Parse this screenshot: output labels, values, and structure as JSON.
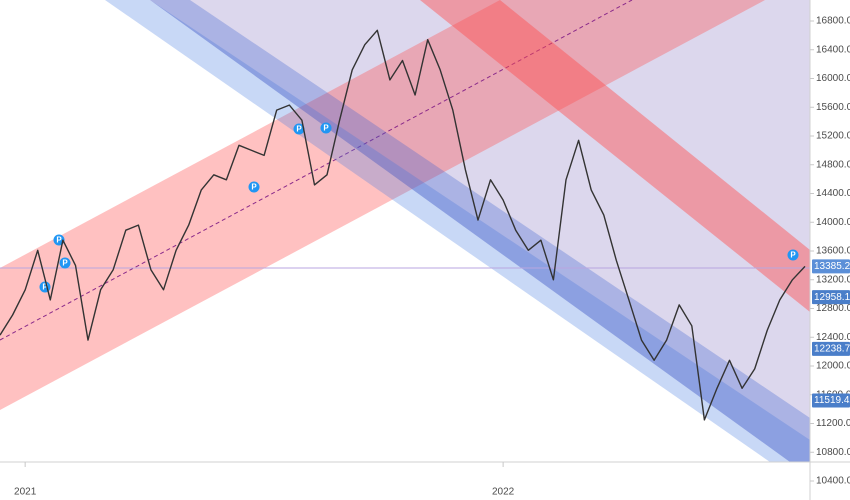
{
  "chart_data": {
    "type": "line",
    "categories": [
      null,
      null,
      "2021",
      null,
      null,
      null,
      null,
      null,
      null,
      null,
      null,
      null,
      null,
      null,
      null,
      null,
      null,
      null,
      null,
      null,
      null,
      null,
      null,
      null,
      null,
      null,
      null,
      null,
      null,
      null,
      null,
      null,
      null,
      null,
      null,
      null,
      null,
      null,
      null,
      null,
      "2022",
      null,
      null,
      null,
      null,
      null,
      null,
      null,
      null,
      null,
      null,
      null,
      null,
      null,
      null,
      null,
      null,
      null,
      null,
      null,
      null,
      null,
      null,
      null,
      null
    ],
    "series": [
      {
        "color": "#333333",
        "values": [
          12430,
          12710,
          13060,
          13610,
          12920,
          13750,
          13400,
          12360,
          13060,
          13340,
          13890,
          13960,
          13340,
          13060,
          13610,
          13960,
          14450,
          14660,
          14590,
          15070,
          15000,
          14930,
          15560,
          15630,
          15420,
          14520,
          14660,
          15420,
          16120,
          16470,
          16670,
          15980,
          16250,
          15770,
          16540,
          16120,
          15560,
          14730,
          14030,
          14590,
          14310,
          13890,
          13610,
          13750,
          13200,
          14590,
          15140,
          14450,
          14100,
          13470,
          12920,
          12360,
          12080,
          12360,
          12850,
          12560,
          11250,
          11690,
          12080,
          11690,
          11960,
          12500,
          12920,
          13200,
          13385.25
        ]
      }
    ],
    "ylim": [
      10400,
      16800
    ],
    "yticks": [
      {
        "value": 10400,
        "label": "10400.00"
      },
      {
        "value": 10800,
        "label": "10800.00"
      },
      {
        "value": 11200,
        "label": "11200.00"
      },
      {
        "value": 11600,
        "label": "11600.00"
      },
      {
        "value": 12000,
        "label": "12000.00"
      },
      {
        "value": 12400,
        "label": "12400.00"
      },
      {
        "value": 12800,
        "label": "12800.00"
      },
      {
        "value": 13200,
        "label": "13200.00"
      },
      {
        "value": 13600,
        "label": "13600.00"
      },
      {
        "value": 14000,
        "label": "14000.00"
      },
      {
        "value": 14400,
        "label": "14400.00"
      },
      {
        "value": 14800,
        "label": "14800.00"
      },
      {
        "value": 15200,
        "label": "15200.00"
      },
      {
        "value": 15600,
        "label": "15600.00"
      },
      {
        "value": 16000,
        "label": "16000.00"
      },
      {
        "value": 16400,
        "label": "16400.00"
      },
      {
        "value": 16800,
        "label": "16800.00"
      }
    ],
    "price_tags": [
      13385.25,
      {
        "value": 12958.1,
        "label": "12958.10"
      },
      12238.76,
      11519.42
    ],
    "pivot_label": "P"
  }
}
